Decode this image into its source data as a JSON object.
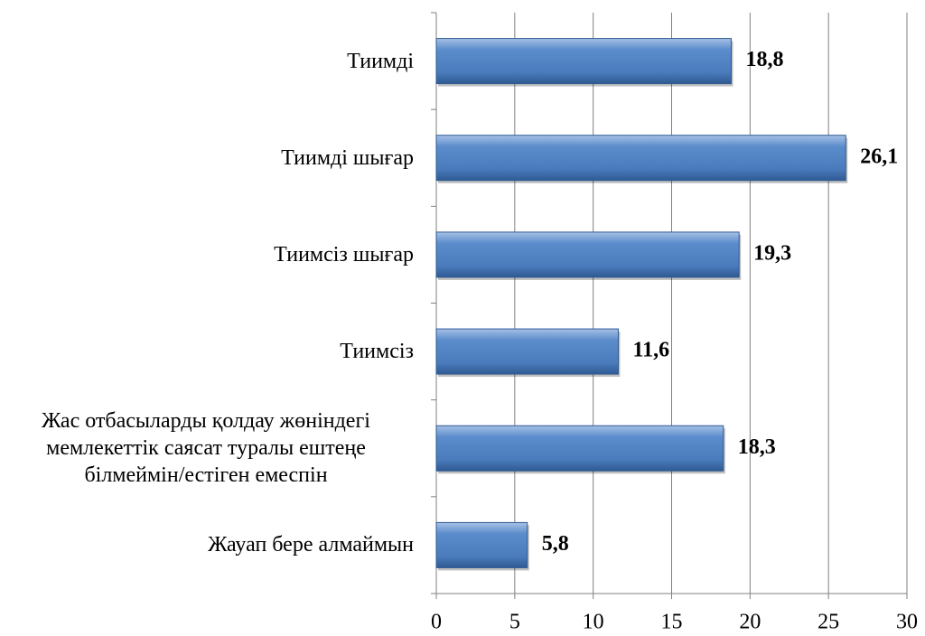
{
  "chart_data": {
    "type": "bar",
    "orientation": "horizontal",
    "categories": [
      "Тиимді",
      "Тиимді шығар",
      "Тиимсіз шығар",
      "Тиимсіз",
      "Жас отбасыларды қолдау жөніндегі мемлекеттік саясат туралы ештеңе білмеймін/естіген емеспін",
      "Жауап бере алмаймын"
    ],
    "values": [
      18.8,
      26.1,
      19.3,
      11.6,
      18.3,
      5.8
    ],
    "value_labels": [
      "18,8",
      "26,1",
      "19,3",
      "11,6",
      "18,3",
      "5,8"
    ],
    "color": "#4f81bd",
    "xlim": [
      0,
      30
    ],
    "xticks": [
      0,
      5,
      10,
      15,
      20,
      25,
      30
    ],
    "grid": true
  }
}
